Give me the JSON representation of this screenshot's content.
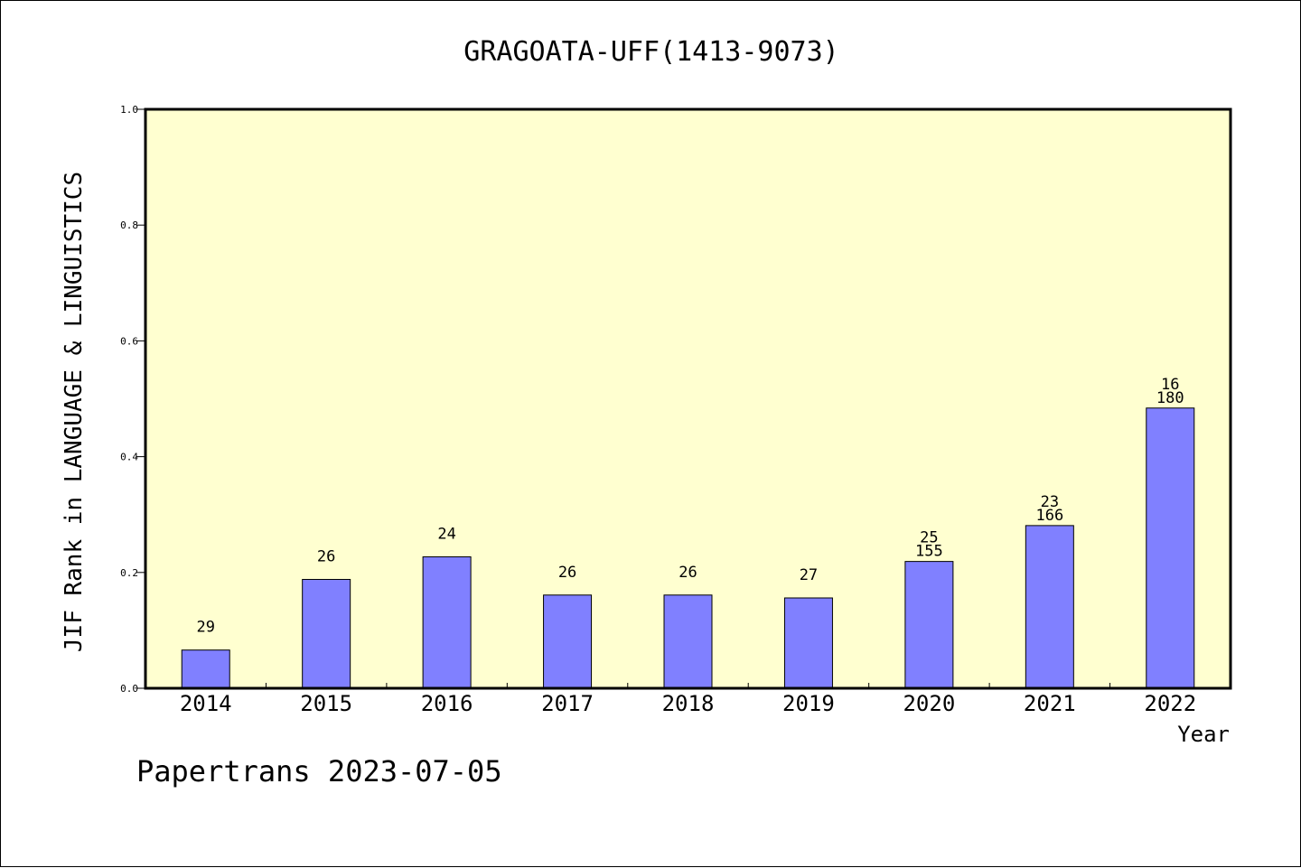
{
  "footer": "Papertrans 2023-07-05",
  "colors": {
    "plot_background": "#ffffd0",
    "bar_fill": "#8080ff",
    "bar_stroke": "#000000"
  },
  "chart_data": {
    "type": "bar",
    "title": "GRAGOATA-UFF(1413-9073)",
    "xlabel": "Year",
    "ylabel": "JIF Rank in LANGUAGE & LINGUISTICS",
    "ylim": [
      0,
      1.0
    ],
    "yticks": [
      "0.0",
      "0.2",
      "0.4",
      "0.6",
      "0.8",
      "1.0"
    ],
    "grid": false,
    "legend": "none",
    "categories": [
      "2014",
      "2015",
      "2016",
      "2017",
      "2018",
      "2019",
      "2020",
      "2021",
      "2022"
    ],
    "values": [
      0.066,
      0.188,
      0.227,
      0.161,
      0.161,
      0.156,
      0.219,
      0.281,
      0.484
    ],
    "bar_labels": [
      [
        "29"
      ],
      [
        "26"
      ],
      [
        "24"
      ],
      [
        "26"
      ],
      [
        "26"
      ],
      [
        "27"
      ],
      [
        "25",
        "155"
      ],
      [
        "23",
        "166"
      ],
      [
        "16",
        "180"
      ]
    ]
  }
}
